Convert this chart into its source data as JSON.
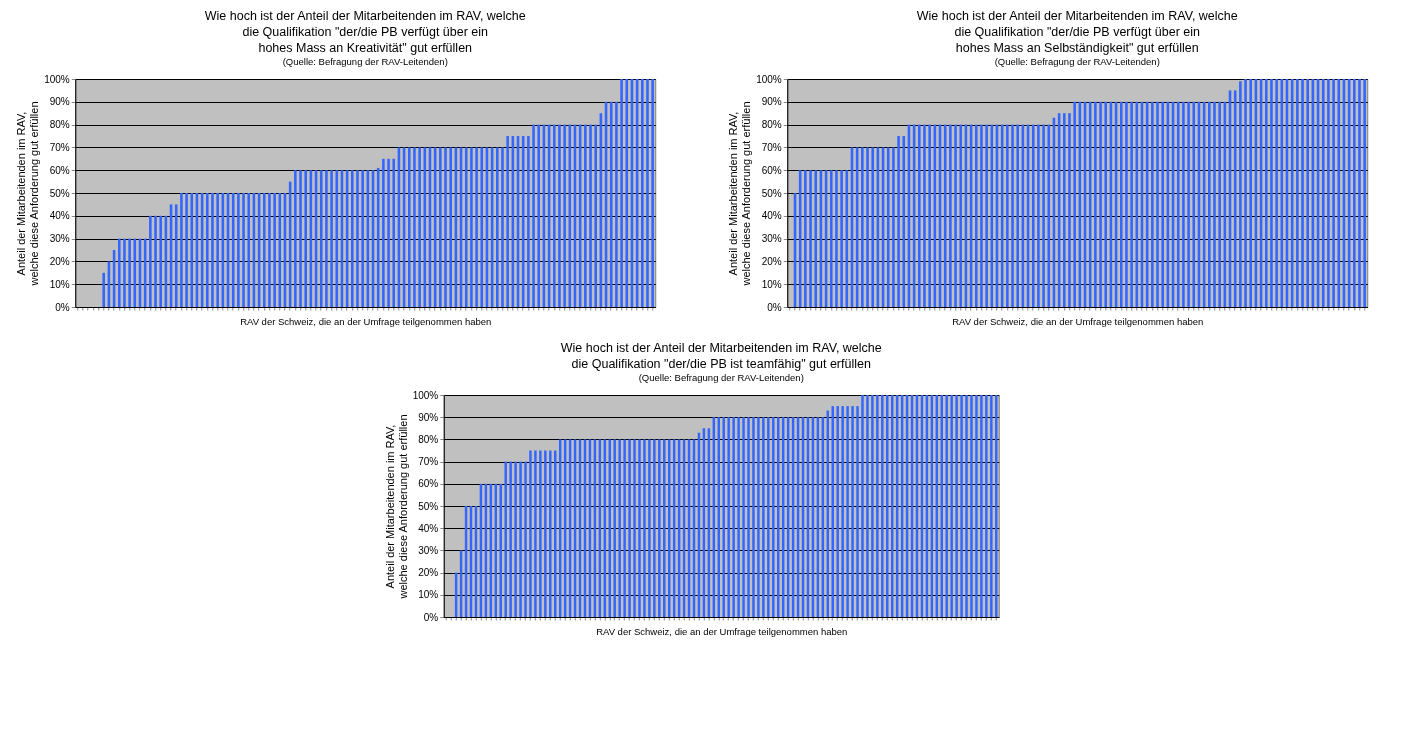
{
  "chart_data": [
    {
      "type": "bar",
      "title": "Wie hoch ist der Anteil der Mitarbeitenden im RAV, welche\ndie Qualifikation \"der/die PB verfügt über ein\nhohes Mass an Kreativität\" gut erfüllen",
      "subtitle": "(Quelle: Befragung der RAV-Leitenden)",
      "xlabel": "RAV der Schweiz, die an der Umfrage teilgenommen haben",
      "ylabel": "Anteil der Mitarbeitenden im RAV,\nwelche diese Anforderung gut erfüllen",
      "color": "#3366ff",
      "ylim": [
        0,
        100
      ],
      "yticks": [
        {
          "value": 0,
          "label": "0%"
        },
        {
          "value": 10,
          "label": "10%"
        },
        {
          "value": 20,
          "label": "20%"
        },
        {
          "value": 30,
          "label": "30%"
        },
        {
          "value": 40,
          "label": "40%"
        },
        {
          "value": 50,
          "label": "50%"
        },
        {
          "value": 60,
          "label": "60%"
        },
        {
          "value": 70,
          "label": "70%"
        },
        {
          "value": 80,
          "label": "80%"
        },
        {
          "value": 90,
          "label": "90%"
        },
        {
          "value": 100,
          "label": "100%"
        }
      ],
      "grid": "y",
      "tick_labels": "y",
      "categories": [
        null,
        null,
        null,
        null,
        null,
        null,
        null,
        null,
        null,
        null,
        null,
        null,
        null,
        null,
        null,
        null,
        null,
        null,
        null,
        null,
        null,
        null,
        null,
        null,
        null,
        null,
        null,
        null,
        null,
        null,
        null,
        null,
        null,
        null,
        null,
        null,
        null,
        null,
        null,
        null,
        null,
        null,
        null,
        null,
        null,
        null,
        null,
        null,
        null,
        null,
        null,
        null,
        null,
        null,
        null,
        null,
        null,
        null,
        null,
        null,
        null,
        null,
        null,
        null,
        null,
        null,
        null,
        null,
        null,
        null,
        null,
        null,
        null,
        null,
        null,
        null,
        null,
        null,
        null,
        null,
        null,
        null,
        null,
        null,
        null,
        null,
        null,
        null,
        null,
        null,
        null,
        null,
        null,
        null,
        null,
        null,
        null,
        null,
        null,
        null,
        null,
        null,
        null,
        null,
        null,
        null,
        null,
        null,
        null,
        null,
        null,
        null
      ],
      "values": [
        0,
        0,
        0,
        0,
        0,
        15,
        20,
        25,
        30,
        30,
        30,
        30,
        30,
        30,
        40,
        40,
        40,
        40,
        45,
        45,
        50,
        50,
        50,
        50,
        50,
        50,
        50,
        50,
        50,
        50,
        50,
        50,
        50,
        50,
        50,
        50,
        50,
        50,
        50,
        50,
        50,
        55,
        60,
        60,
        60,
        60,
        60,
        60,
        60,
        60,
        60,
        60,
        60,
        60,
        60,
        60,
        60,
        60,
        61,
        65,
        65,
        65,
        70,
        70,
        70,
        70,
        70,
        70,
        70,
        70,
        70,
        70,
        70,
        70,
        70,
        70,
        70,
        70,
        70,
        70,
        70,
        70,
        70,
        75,
        75,
        75,
        75,
        75,
        80,
        80,
        80,
        80,
        80,
        80,
        80,
        80,
        80,
        80,
        80,
        80,
        80,
        85,
        90,
        90,
        90,
        100,
        100,
        100,
        100,
        100,
        100,
        100
      ]
    },
    {
      "type": "bar",
      "title": "Wie hoch ist der Anteil der Mitarbeitenden im RAV, welche\ndie Qualifikation \"der/die PB verfügt über ein\nhohes Mass an Selbständigkeit\" gut erfüllen",
      "subtitle": "(Quelle: Befragung der RAV-Leitenden)",
      "xlabel": "RAV der Schweiz, die an der Umfrage teilgenommen haben",
      "ylabel": "Anteil der Mitarbeitenden im RAV,\nwelche diese Anforderung gut erfüllen",
      "color": "#3366ff",
      "ylim": [
        0,
        100
      ],
      "yticks": [
        {
          "value": 0,
          "label": "0%"
        },
        {
          "value": 10,
          "label": "10%"
        },
        {
          "value": 20,
          "label": "20%"
        },
        {
          "value": 30,
          "label": "30%"
        },
        {
          "value": 40,
          "label": "40%"
        },
        {
          "value": 50,
          "label": "50%"
        },
        {
          "value": 60,
          "label": "60%"
        },
        {
          "value": 70,
          "label": "70%"
        },
        {
          "value": 80,
          "label": "80%"
        },
        {
          "value": 90,
          "label": "90%"
        },
        {
          "value": 100,
          "label": "100%"
        }
      ],
      "grid": "y",
      "tick_labels": "y",
      "categories": [
        null,
        null,
        null,
        null,
        null,
        null,
        null,
        null,
        null,
        null,
        null,
        null,
        null,
        null,
        null,
        null,
        null,
        null,
        null,
        null,
        null,
        null,
        null,
        null,
        null,
        null,
        null,
        null,
        null,
        null,
        null,
        null,
        null,
        null,
        null,
        null,
        null,
        null,
        null,
        null,
        null,
        null,
        null,
        null,
        null,
        null,
        null,
        null,
        null,
        null,
        null,
        null,
        null,
        null,
        null,
        null,
        null,
        null,
        null,
        null,
        null,
        null,
        null,
        null,
        null,
        null,
        null,
        null,
        null,
        null,
        null,
        null,
        null,
        null,
        null,
        null,
        null,
        null,
        null,
        null,
        null,
        null,
        null,
        null,
        null,
        null,
        null,
        null,
        null,
        null,
        null,
        null,
        null,
        null,
        null,
        null,
        null,
        null,
        null,
        null,
        null,
        null,
        null,
        null,
        null,
        null,
        null,
        null,
        null,
        null,
        null,
        null
      ],
      "values": [
        0,
        50,
        60,
        60,
        60,
        60,
        60,
        60,
        60,
        60,
        60,
        60,
        70,
        70,
        70,
        70,
        70,
        70,
        70,
        70,
        70,
        75,
        75,
        80,
        80,
        80,
        80,
        80,
        80,
        80,
        80,
        80,
        80,
        80,
        80,
        80,
        80,
        80,
        80,
        80,
        80,
        80,
        80,
        80,
        80,
        80,
        80,
        80,
        80,
        80,
        80,
        83,
        85,
        85,
        85,
        90,
        90,
        90,
        90,
        90,
        90,
        90,
        90,
        90,
        90,
        90,
        90,
        90,
        90,
        90,
        90,
        90,
        90,
        90,
        90,
        90,
        90,
        90,
        90,
        90,
        90,
        90,
        90,
        90,
        90,
        95,
        95,
        99,
        100,
        100,
        100,
        100,
        100,
        100,
        100,
        100,
        100,
        100,
        100,
        100,
        100,
        100,
        100,
        100,
        100,
        100,
        100,
        100,
        100,
        100,
        100,
        100
      ]
    },
    {
      "type": "bar",
      "title": "Wie hoch ist der Anteil der Mitarbeitenden im RAV, welche\ndie Qualifikation \"der/die PB ist teamfähig\" gut erfüllen",
      "subtitle": "(Quelle: Befragung der RAV-Leitenden)",
      "xlabel": "RAV der Schweiz, die an der Umfrage teilgenommen haben",
      "ylabel": "Anteil der Mitarbeitenden im RAV,\nwelche diese Anforderung gut erfüllen",
      "color": "#3366ff",
      "ylim": [
        0,
        100
      ],
      "yticks": [
        {
          "value": 0,
          "label": "0%"
        },
        {
          "value": 10,
          "label": "10%"
        },
        {
          "value": 20,
          "label": "20%"
        },
        {
          "value": 30,
          "label": "30%"
        },
        {
          "value": 40,
          "label": "40%"
        },
        {
          "value": 50,
          "label": "50%"
        },
        {
          "value": 60,
          "label": "60%"
        },
        {
          "value": 70,
          "label": "70%"
        },
        {
          "value": 80,
          "label": "80%"
        },
        {
          "value": 90,
          "label": "90%"
        },
        {
          "value": 100,
          "label": "100%"
        }
      ],
      "grid": "y",
      "tick_labels": "y",
      "categories": [
        null,
        null,
        null,
        null,
        null,
        null,
        null,
        null,
        null,
        null,
        null,
        null,
        null,
        null,
        null,
        null,
        null,
        null,
        null,
        null,
        null,
        null,
        null,
        null,
        null,
        null,
        null,
        null,
        null,
        null,
        null,
        null,
        null,
        null,
        null,
        null,
        null,
        null,
        null,
        null,
        null,
        null,
        null,
        null,
        null,
        null,
        null,
        null,
        null,
        null,
        null,
        null,
        null,
        null,
        null,
        null,
        null,
        null,
        null,
        null,
        null,
        null,
        null,
        null,
        null,
        null,
        null,
        null,
        null,
        null,
        null,
        null,
        null,
        null,
        null,
        null,
        null,
        null,
        null,
        null,
        null,
        null,
        null,
        null,
        null,
        null,
        null,
        null,
        null,
        null,
        null,
        null,
        null,
        null,
        null,
        null,
        null,
        null,
        null,
        null,
        null,
        null,
        null,
        null,
        null,
        null,
        null,
        null,
        null,
        null,
        null,
        null
      ],
      "values": [
        0,
        0,
        20,
        30,
        50,
        50,
        50,
        60,
        60,
        60,
        60,
        60,
        70,
        70,
        70,
        70,
        70,
        75,
        75,
        75,
        75,
        75,
        75,
        80,
        80,
        80,
        80,
        80,
        80,
        80,
        80,
        80,
        80,
        80,
        80,
        80,
        80,
        80,
        80,
        80,
        80,
        80,
        80,
        80,
        80,
        80,
        80,
        80,
        80,
        80,
        80,
        83,
        85,
        85,
        90,
        90,
        90,
        90,
        90,
        90,
        90,
        90,
        90,
        90,
        90,
        90,
        90,
        90,
        90,
        90,
        90,
        90,
        90,
        90,
        90,
        90,
        90,
        93,
        95,
        95,
        95,
        95,
        95,
        95,
        100,
        100,
        100,
        100,
        100,
        100,
        100,
        100,
        100,
        100,
        100,
        100,
        100,
        100,
        100,
        100,
        100,
        100,
        100,
        100,
        100,
        100,
        100,
        100,
        100,
        100,
        100,
        100
      ]
    }
  ]
}
